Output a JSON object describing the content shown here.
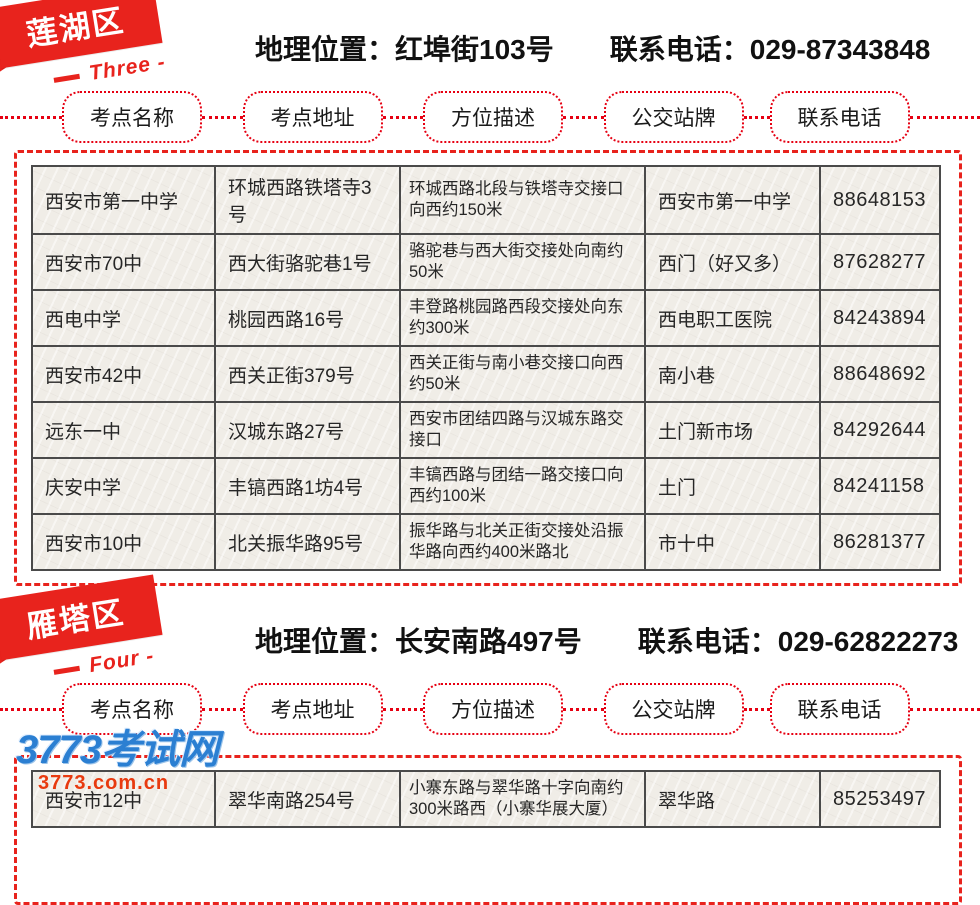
{
  "sections": [
    {
      "ribbon": {
        "title": "莲湖区",
        "subtitle": "Three -"
      },
      "header": {
        "location_label": "地理位置：",
        "location": "红埠街103号",
        "phone_label": "联系电话：",
        "phone": "029-87343848"
      },
      "pills": [
        "考点名称",
        "考点地址",
        "方位描述",
        "公交站牌",
        "联系电话"
      ],
      "rows": [
        {
          "name": "西安市第一中学",
          "address": "环城西路铁塔寺3号",
          "desc": "环城西路北段与铁塔寺交接口向西约150米",
          "bus": "西安市第一中学",
          "phone": "88648153"
        },
        {
          "name": "西安市70中",
          "address": "西大街骆驼巷1号",
          "desc": "骆驼巷与西大街交接处向南约50米",
          "bus": "西门（好又多）",
          "phone": "87628277"
        },
        {
          "name": "西电中学",
          "address": "桃园西路16号",
          "desc": "丰登路桃园路西段交接处向东约300米",
          "bus": "西电职工医院",
          "phone": "84243894"
        },
        {
          "name": "西安市42中",
          "address": "西关正街379号",
          "desc": "西关正街与南小巷交接口向西约50米",
          "bus": "南小巷",
          "phone": "88648692"
        },
        {
          "name": "远东一中",
          "address": "汉城东路27号",
          "desc": "西安市团结四路与汉城东路交接口",
          "bus": "土门新市场",
          "phone": "84292644"
        },
        {
          "name": "庆安中学",
          "address": "丰镐西路1坊4号",
          "desc": "丰镐西路与团结一路交接口向西约100米",
          "bus": "土门",
          "phone": "84241158"
        },
        {
          "name": "西安市10中",
          "address": "北关振华路95号",
          "desc": "振华路与北关正街交接处沿振华路向西约400米路北",
          "bus": "市十中",
          "phone": "86281377"
        }
      ]
    },
    {
      "ribbon": {
        "title": "雁塔区",
        "subtitle": "Four -"
      },
      "header": {
        "location_label": "地理位置：",
        "location": "长安南路497号",
        "phone_label": "联系电话：",
        "phone": "029-62822273"
      },
      "pills": [
        "考点名称",
        "考点地址",
        "方位描述",
        "公交站牌",
        "联系电话"
      ],
      "rows": [
        {
          "name": "西安市12中",
          "address": "翠华南路254号",
          "desc": "小寨东路与翠华路十字向南约300米路西（小寨华展大厦）",
          "bus": "翠华路",
          "phone": "85253497"
        }
      ]
    }
  ],
  "watermark": {
    "logo": "3773考试网",
    "domain": "3773.com.cn"
  }
}
